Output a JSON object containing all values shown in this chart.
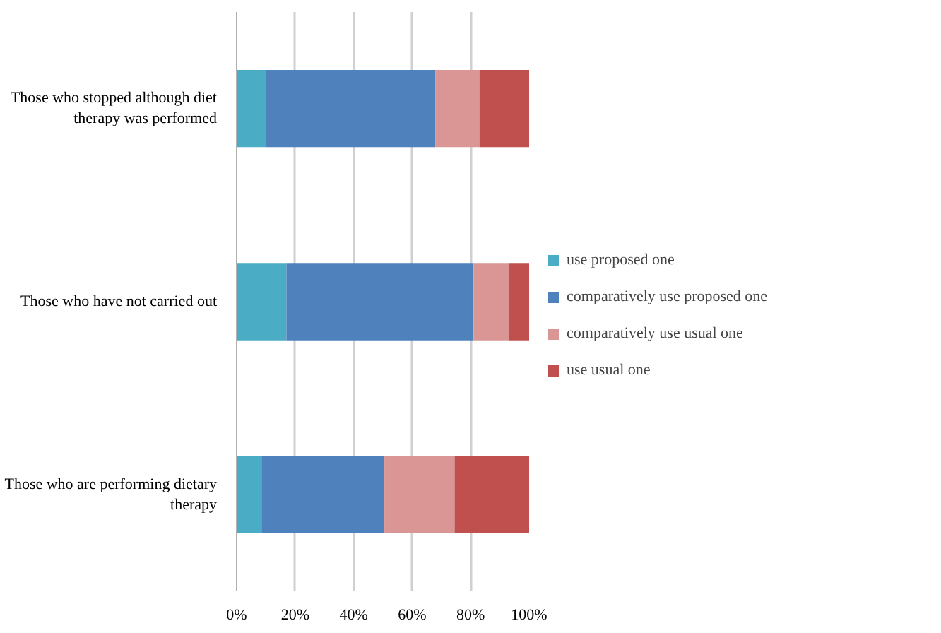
{
  "chart_data": {
    "type": "bar",
    "orientation": "horizontal",
    "stacked": true,
    "categories": [
      "Those who stopped although diet therapy was performed",
      "Those who have not carried out",
      "Those who are performing dietary therapy"
    ],
    "series": [
      {
        "name": "use proposed one",
        "color": "#4bacc6",
        "values": [
          10,
          17,
          8.5
        ]
      },
      {
        "name": "comparatively use proposed one",
        "color": "#4f81bd",
        "values": [
          58,
          64,
          42
        ]
      },
      {
        "name": "comparatively use usual one",
        "color": "#d99694",
        "values": [
          15,
          12,
          24
        ]
      },
      {
        "name": "use usual one",
        "color": "#c0504d",
        "values": [
          17,
          7,
          25.5
        ]
      }
    ],
    "xlim": [
      0,
      100
    ],
    "xticks": [
      {
        "value": 0,
        "label": "0%"
      },
      {
        "value": 20,
        "label": "20%"
      },
      {
        "value": 40,
        "label": "40%"
      },
      {
        "value": 60,
        "label": "60%"
      },
      {
        "value": 80,
        "label": "80%"
      },
      {
        "value": 100,
        "label": "100%"
      }
    ],
    "grid": "x",
    "legend": "right"
  }
}
